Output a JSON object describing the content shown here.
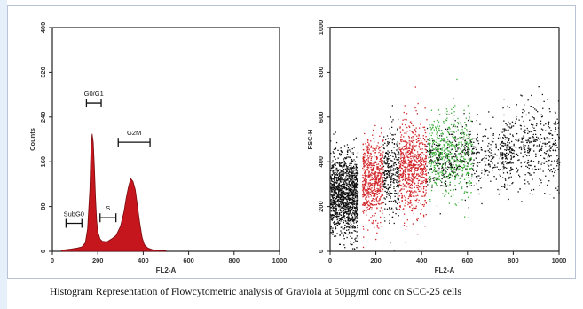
{
  "caption": "Histogram Representation of Flowcytometric analysis of Graviola at 50µg/ml conc on SCC-25 cells",
  "colors": {
    "histogram_fill": "#c4161c",
    "scatter_black": "#111111",
    "scatter_red": "#d2262b",
    "scatter_green": "#3cae3a"
  },
  "chart_data": [
    {
      "type": "area",
      "xlabel": "FL2-A",
      "ylabel": "Counts",
      "xlim": [
        0,
        1000
      ],
      "ylim": [
        0,
        400
      ],
      "x_ticks": [
        "0",
        "200",
        "400",
        "600",
        "800",
        "1000"
      ],
      "y_ticks": [
        "0",
        "80",
        "160",
        "240",
        "320",
        "400"
      ],
      "gates": [
        {
          "label": "SubG0",
          "x_start": 60,
          "x_end": 130,
          "y": 50
        },
        {
          "label": "G0/G1",
          "x_start": 150,
          "x_end": 215,
          "y": 265
        },
        {
          "label": "S",
          "x_start": 210,
          "x_end": 280,
          "y": 60
        },
        {
          "label": "G2M",
          "x_start": 290,
          "x_end": 430,
          "y": 195
        }
      ],
      "series": [
        {
          "x": [
            40,
            80,
            110,
            130,
            145,
            155,
            165,
            170,
            175,
            180,
            185,
            190,
            195,
            200,
            210,
            220,
            240,
            260,
            280,
            300,
            315,
            325,
            335,
            345,
            355,
            365,
            375,
            385,
            395,
            405,
            420,
            440,
            460,
            500
          ],
          "y": [
            2,
            4,
            6,
            8,
            15,
            40,
            110,
            185,
            210,
            195,
            150,
            95,
            55,
            35,
            22,
            18,
            17,
            22,
            28,
            45,
            70,
            95,
            115,
            130,
            125,
            110,
            80,
            50,
            25,
            12,
            6,
            3,
            2,
            1
          ]
        }
      ]
    },
    {
      "type": "scatter",
      "xlabel": "FL2-A",
      "ylabel": "FSC-H",
      "xlim": [
        0,
        1000
      ],
      "ylim": [
        0,
        1000
      ],
      "x_ticks": [
        "0",
        "200",
        "400",
        "600",
        "800",
        "1000"
      ],
      "y_ticks": [
        "0",
        "200",
        "400",
        "600",
        "800",
        "1000"
      ],
      "series": [
        {
          "color_key": "scatter_black",
          "x_range": [
            0,
            120
          ],
          "y_center": 250,
          "y_spread": 90,
          "n": 1300
        },
        {
          "color_key": "scatter_red",
          "x_range": [
            140,
            230
          ],
          "y_center": 320,
          "y_spread": 90,
          "n": 600
        },
        {
          "color_key": "scatter_black",
          "x_range": [
            230,
            300
          ],
          "y_center": 340,
          "y_spread": 100,
          "n": 300
        },
        {
          "color_key": "scatter_red",
          "x_range": [
            300,
            420
          ],
          "y_center": 380,
          "y_spread": 100,
          "n": 700
        },
        {
          "color_key": "scatter_green",
          "x_range": [
            430,
            620
          ],
          "y_center": 430,
          "y_spread": 90,
          "n": 600
        },
        {
          "color_key": "scatter_black",
          "x_range": [
            420,
            800
          ],
          "y_center": 420,
          "y_spread": 80,
          "n": 500
        },
        {
          "color_key": "scatter_black",
          "x_range": [
            750,
            1000
          ],
          "y_center": 470,
          "y_spread": 90,
          "n": 450
        }
      ],
      "line": {
        "y": 1000
      }
    }
  ]
}
